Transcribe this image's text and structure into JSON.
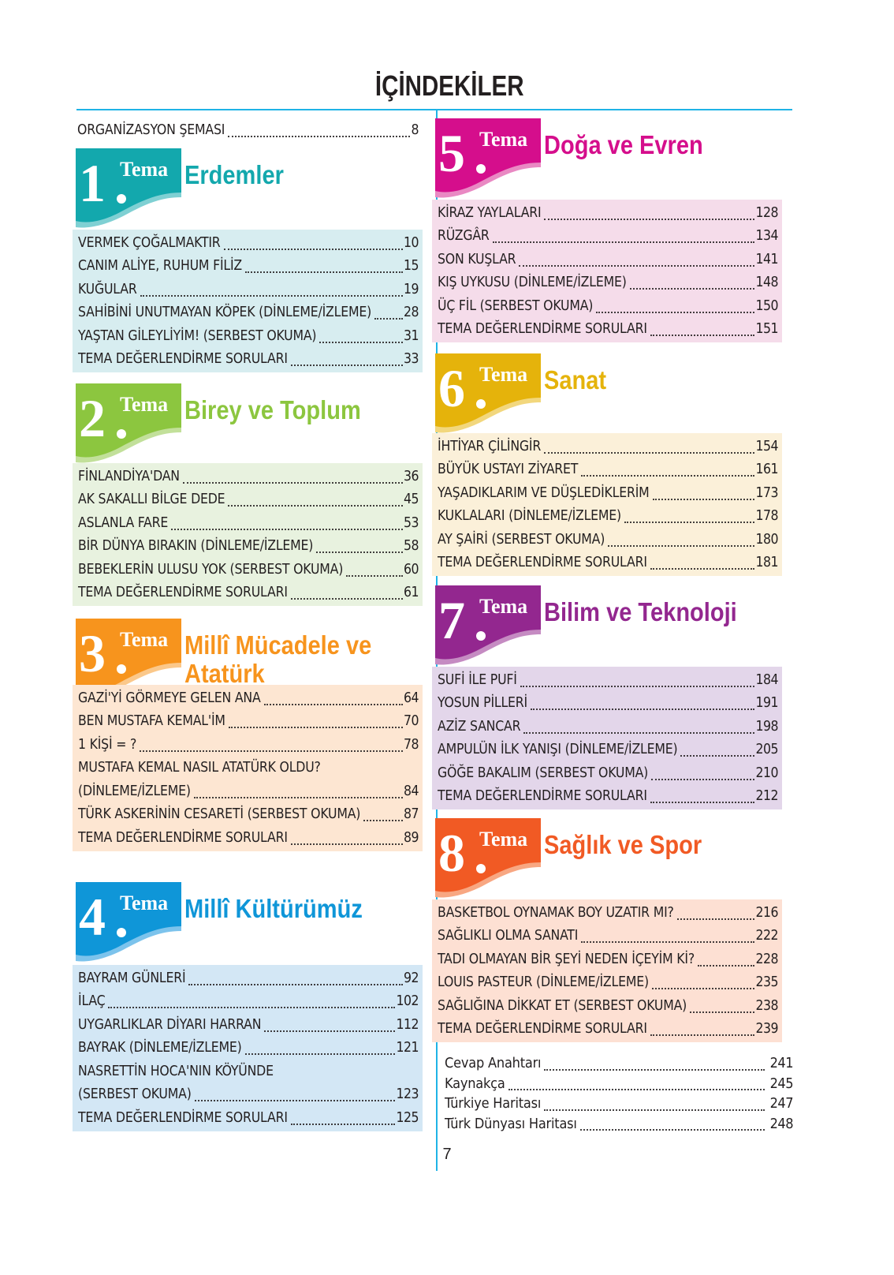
{
  "page": {
    "title": "İÇİNDEKİLER",
    "page_number": "7",
    "accent_color": "#1fb3e6"
  },
  "intro": {
    "label": "ORGANİZASYON ŞEMASI",
    "page": "8"
  },
  "themes": [
    {
      "number": "1",
      "tema_label": "Tema",
      "title": "Erdemler",
      "color": "#13a8ad",
      "light_color": "#7fd0d3",
      "list_bg": "#d7edf0",
      "items": [
        {
          "label": "VERMEK ÇOĞALMAKTIR",
          "page": "10"
        },
        {
          "label": "CANIM ALİYE, RUHUM FİLİZ",
          "page": "15"
        },
        {
          "label": "KUĞULAR",
          "page": "19"
        },
        {
          "label": "SAHİBİNİ UNUTMAYAN KÖPEK (DİNLEME/İZLEME)",
          "page": "28"
        },
        {
          "label": "YAŞTAN GİLEYLİYİM! (SERBEST OKUMA)",
          "page": "31"
        },
        {
          "label": "TEMA DEĞERLENDİRME SORULARI",
          "page": "33"
        }
      ]
    },
    {
      "number": "2",
      "tema_label": "Tema",
      "title": "Birey ve Toplum",
      "color": "#8cc63f",
      "light_color": "#c2e09a",
      "list_bg": "#e8f2df",
      "items": [
        {
          "label": "FİNLANDİYA'DAN",
          "page": "36"
        },
        {
          "label": "AK SAKALLI BİLGE DEDE",
          "page": "45"
        },
        {
          "label": "ASLANLA FARE",
          "page": "53"
        },
        {
          "label": "BİR DÜNYA BIRAKIN (DİNLEME/İZLEME)",
          "page": "58"
        },
        {
          "label": "BEBEKLERİN ULUSU YOK (SERBEST OKUMA)",
          "page": "60"
        },
        {
          "label": "TEMA DEĞERLENDİRME SORULARI",
          "page": "61"
        }
      ]
    },
    {
      "number": "3",
      "tema_label": "Tema",
      "title": "Millî Mücadele ve",
      "title_line2": "Atatürk",
      "color": "#f7941d",
      "light_color": "#fbc88a",
      "list_bg": "#fde6d2",
      "items": [
        {
          "label": "GAZİ'Yİ GÖRMEYE GELEN ANA",
          "page": "64"
        },
        {
          "label": "BEN MUSTAFA KEMAL'İM",
          "page": "70"
        },
        {
          "label": "1 KİŞİ = ?",
          "page": "78"
        },
        {
          "label": "MUSTAFA KEMAL NASIL ATATÜRK OLDU?",
          "page": ""
        },
        {
          "label": "(DİNLEME/İZLEME)",
          "page": "84"
        },
        {
          "label": "TÜRK ASKERİNİN CESARETİ (SERBEST OKUMA)",
          "page": "87"
        },
        {
          "label": "TEMA DEĞERLENDİRME SORULARI",
          "page": "89"
        }
      ]
    },
    {
      "number": "4",
      "tema_label": "Tema",
      "title": "Millî Kültürümüz",
      "color": "#0f96d8",
      "light_color": "#7cc3ec",
      "list_bg": "#d3e7f5",
      "items": [
        {
          "label": "BAYRAM GÜNLERİ",
          "page": "92"
        },
        {
          "label": "İLAÇ",
          "page": "102"
        },
        {
          "label": "UYGARLIKLAR DİYARI HARRAN",
          "page": "112"
        },
        {
          "label": "BAYRAK (DİNLEME/İZLEME)",
          "page": "121"
        },
        {
          "label": "NASRETTİN HOCA'NIN KÖYÜNDE",
          "page": ""
        },
        {
          "label": "(SERBEST OKUMA)",
          "page": "123"
        },
        {
          "label": "TEMA DEĞERLENDİRME SORULARI",
          "page": "125"
        }
      ]
    },
    {
      "number": "5",
      "tema_label": "Tema",
      "title": "Doğa ve Evren",
      "color": "#d50e8c",
      "light_color": "#e989c3",
      "list_bg": "#f5dcea",
      "items": [
        {
          "label": "KİRAZ YAYLALARI",
          "page": "128"
        },
        {
          "label": "RÜZGÂR",
          "page": "134"
        },
        {
          "label": "SON KUŞLAR",
          "page": "141"
        },
        {
          "label": "KIŞ UYKUSU (DİNLEME/İZLEME)",
          "page": "148"
        },
        {
          "label": "ÜÇ FİL (SERBEST OKUMA)",
          "page": "150"
        },
        {
          "label": "TEMA DEĞERLENDİRME SORULARI",
          "page": "151"
        }
      ]
    },
    {
      "number": "6",
      "tema_label": "Tema",
      "title": "Sanat",
      "color": "#e5b30b",
      "light_color": "#f2d77d",
      "list_bg": "#fbf0d9",
      "items": [
        {
          "label": "İHTİYAR ÇİLİNGİR",
          "page": "154"
        },
        {
          "label": "BÜYÜK USTAYI ZİYARET",
          "page": "161"
        },
        {
          "label": "YAŞADIKLARIM VE DÜŞLEDİKLERİM",
          "page": "173"
        },
        {
          "label": "KUKLALARI  (DİNLEME/İZLEME)",
          "page": "178"
        },
        {
          "label": "AY ŞAİRİ (SERBEST OKUMA)",
          "page": "180"
        },
        {
          "label": "TEMA DEĞERLENDİRME SORULARI",
          "page": "181"
        }
      ]
    },
    {
      "number": "7",
      "tema_label": "Tema",
      "title": "Bilim ve Teknoloji",
      "color": "#93278f",
      "light_color": "#c58bc2",
      "list_bg": "#e3d6ea",
      "items": [
        {
          "label": "SUFİ İLE PUFİ",
          "page": "184"
        },
        {
          "label": "YOSUN PİLLERİ",
          "page": "191"
        },
        {
          "label": "AZİZ SANCAR",
          "page": "198"
        },
        {
          "label": "AMPULÜN İLK YANIŞI (DİNLEME/İZLEME)",
          "page": "205"
        },
        {
          "label": "GÖĞE BAKALIM (SERBEST OKUMA)",
          "page": "210"
        },
        {
          "label": "TEMA DEĞERLENDİRME SORULARI",
          "page": "212"
        }
      ]
    },
    {
      "number": "8",
      "tema_label": "Tema",
      "title": "Sağlık ve Spor",
      "color": "#f15a24",
      "light_color": "#f8a782",
      "list_bg": "#fde0d3",
      "items": [
        {
          "label": "BASKETBOL OYNAMAK BOY UZATIR MI?",
          "page": "216"
        },
        {
          "label": "SAĞLIKLI OLMA SANATI",
          "page": "222"
        },
        {
          "label": "TADI OLMAYAN BİR ŞEYİ NEDEN İÇEYİM Kİ?",
          "page": "228"
        },
        {
          "label": "LOUIS PASTEUR (DİNLEME/İZLEME)",
          "page": "235"
        },
        {
          "label": "SAĞLIĞINA DİKKAT ET (SERBEST OKUMA)",
          "page": "238"
        },
        {
          "label": "TEMA DEĞERLENDİRME SORULARI",
          "page": "239"
        }
      ]
    }
  ],
  "appendix": [
    {
      "label": "Cevap Anahtarı",
      "page": "241"
    },
    {
      "label": "Kaynakça",
      "page": "245"
    },
    {
      "label": "Türkiye Haritası",
      "page": "247"
    },
    {
      "label": "Türk Dünyası Haritası",
      "page": "248"
    }
  ]
}
